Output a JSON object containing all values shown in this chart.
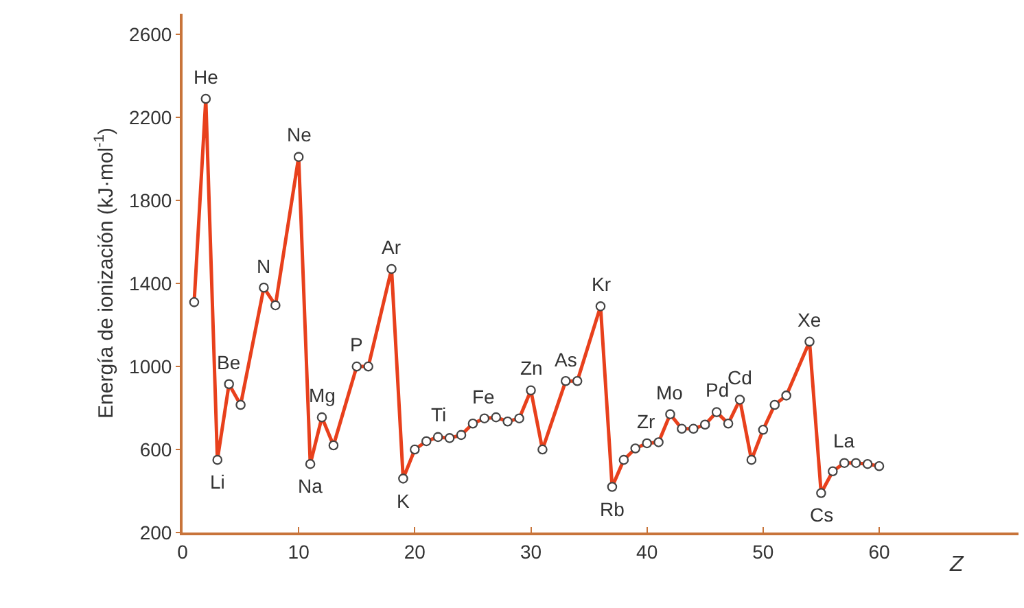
{
  "chart_data": {
    "type": "line",
    "xlabel": "Z",
    "ylabel": "Energía de ionización (kJ·mol$^{-1}$)",
    "series": [
      {
        "color": "#e8401c",
        "x": [
          1,
          2,
          3,
          4,
          5,
          7,
          8,
          10,
          11,
          12,
          13,
          15,
          16,
          18,
          19,
          20,
          21,
          22,
          23,
          24,
          25,
          26,
          27,
          28,
          29,
          30,
          31,
          33,
          34,
          36,
          37,
          38,
          39,
          40,
          41,
          42,
          43,
          44,
          45,
          46,
          47,
          48,
          49,
          50,
          51,
          52,
          54,
          55,
          56,
          57,
          58,
          59,
          60
        ],
        "values": [
          1310,
          2290,
          550,
          915,
          815,
          1380,
          1295,
          2010,
          530,
          755,
          620,
          1000,
          1000,
          1470,
          460,
          600,
          640,
          660,
          655,
          670,
          725,
          750,
          755,
          735,
          750,
          885,
          600,
          930,
          930,
          1290,
          420,
          550,
          605,
          630,
          635,
          770,
          700,
          700,
          720,
          780,
          725,
          840,
          550,
          695,
          815,
          860,
          1120,
          390,
          495,
          535,
          535,
          530,
          520
        ]
      }
    ],
    "annotations": [
      {
        "text": "He",
        "x": 2,
        "y": 2290
      },
      {
        "text": "Li",
        "x": 3,
        "y": 550
      },
      {
        "text": "Be",
        "x": 4,
        "y": 915
      },
      {
        "text": "N",
        "x": 7,
        "y": 1380
      },
      {
        "text": "Ne",
        "x": 10,
        "y": 2010
      },
      {
        "text": "Na",
        "x": 11,
        "y": 530
      },
      {
        "text": "Mg",
        "x": 12,
        "y": 755
      },
      {
        "text": "P",
        "x": 15,
        "y": 1000
      },
      {
        "text": "Ar",
        "x": 18,
        "y": 1470
      },
      {
        "text": "K",
        "x": 19,
        "y": 460
      },
      {
        "text": "Ti",
        "x": 22,
        "y": 660
      },
      {
        "text": "Fe",
        "x": 26,
        "y": 750
      },
      {
        "text": "Zn",
        "x": 30,
        "y": 885
      },
      {
        "text": "As",
        "x": 33,
        "y": 930
      },
      {
        "text": "Kr",
        "x": 36,
        "y": 1290
      },
      {
        "text": "Rb",
        "x": 37,
        "y": 420
      },
      {
        "text": "Zr",
        "x": 40,
        "y": 630
      },
      {
        "text": "Mo",
        "x": 42,
        "y": 770
      },
      {
        "text": "Pd",
        "x": 46,
        "y": 780
      },
      {
        "text": "Cd",
        "x": 48,
        "y": 840
      },
      {
        "text": "Xe",
        "x": 54,
        "y": 1120
      },
      {
        "text": "Cs",
        "x": 55,
        "y": 390
      },
      {
        "text": "La",
        "x": 57,
        "y": 535
      }
    ],
    "xlim": [
      0,
      72
    ],
    "xticks": [
      0,
      10,
      20,
      30,
      40,
      50,
      60
    ],
    "ylim": [
      200,
      2700
    ],
    "yticks": [
      200,
      600,
      1000,
      1400,
      1800,
      2200,
      2600
    ],
    "marker": "circle",
    "line_style": "solid"
  }
}
